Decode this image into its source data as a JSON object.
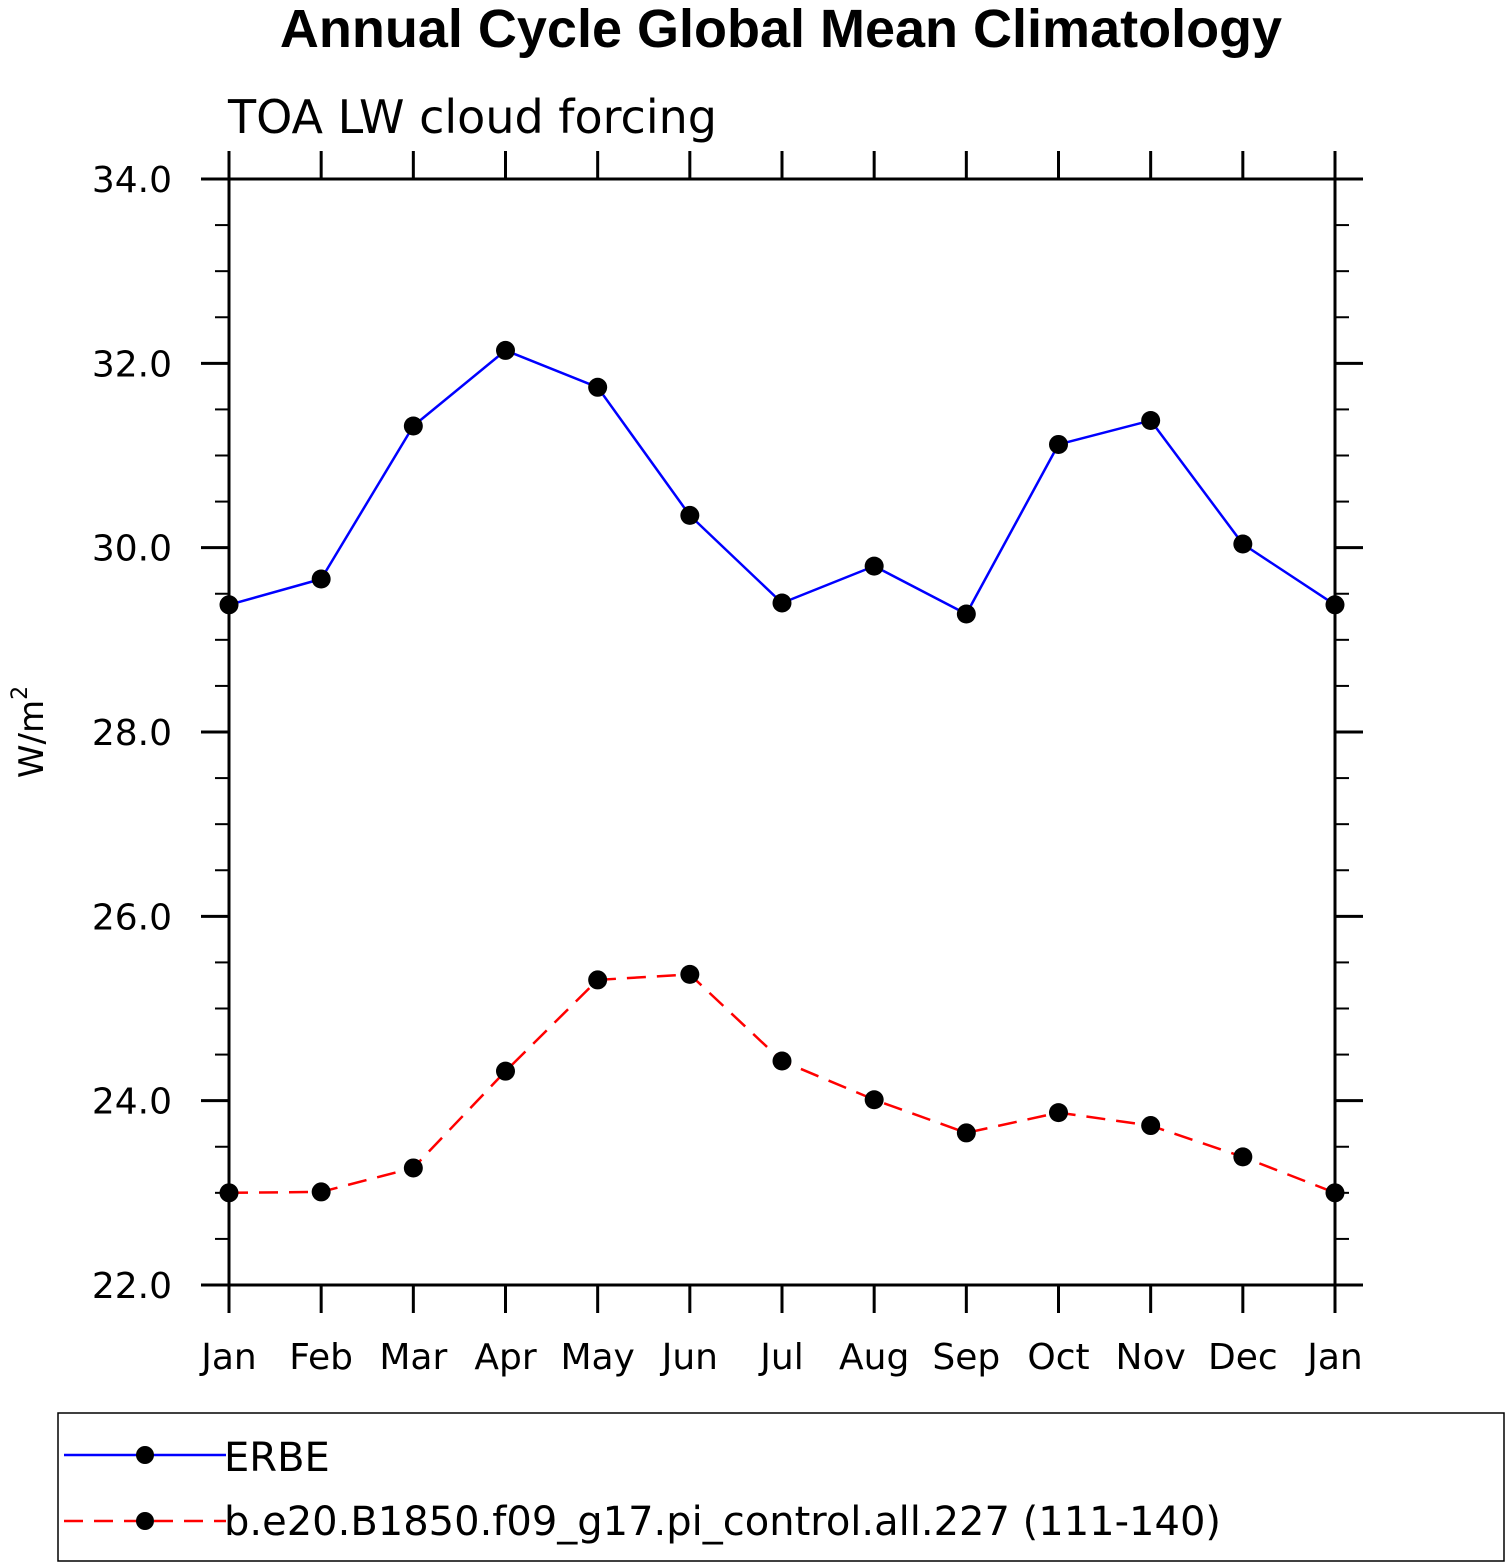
{
  "chart_data": {
    "type": "line",
    "title": "Annual Cycle Global Mean Climatology",
    "subtitle": "TOA LW cloud forcing",
    "xlabel": "",
    "ylabel": "W/m",
    "ylabel_sup": "2",
    "categories": [
      "Jan",
      "Feb",
      "Mar",
      "Apr",
      "May",
      "Jun",
      "Jul",
      "Aug",
      "Sep",
      "Oct",
      "Nov",
      "Dec",
      "Jan"
    ],
    "ylim": [
      22.0,
      34.0
    ],
    "yticks": [
      "22.0",
      "24.0",
      "26.0",
      "28.0",
      "30.0",
      "32.0",
      "34.0"
    ],
    "ytick_values": [
      22,
      24,
      26,
      28,
      30,
      32,
      34
    ],
    "grid": false,
    "legend_position": "bottom",
    "series": [
      {
        "name": "ERBE",
        "color": "#0000ff",
        "style": "solid",
        "values": [
          29.38,
          29.66,
          31.32,
          32.14,
          31.74,
          30.35,
          29.4,
          29.8,
          29.28,
          31.12,
          31.38,
          30.04,
          29.38
        ]
      },
      {
        "name": "b.e20.B1850.f09_g17.pi_control.all.227 (111-140)",
        "color": "#ff0000",
        "style": "dashed",
        "values": [
          23.0,
          23.01,
          23.27,
          24.32,
          25.31,
          25.37,
          24.43,
          24.01,
          23.65,
          23.87,
          23.73,
          23.39,
          23.0
        ]
      }
    ]
  }
}
